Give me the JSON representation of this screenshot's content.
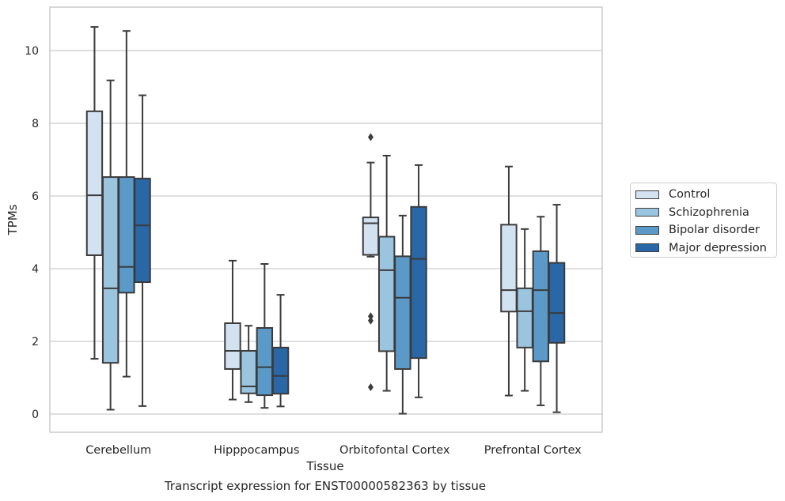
{
  "chart_data": {
    "type": "box",
    "title": "",
    "caption": "Transcript expression for ENST00000582363 by tissue",
    "xlabel": "Tissue",
    "ylabel": "TPMs",
    "ylim": [
      -0.5,
      11.2
    ],
    "yticks": [
      0,
      2,
      4,
      6,
      8,
      10
    ],
    "grid": "horizontal",
    "legend_position": "right",
    "categories": [
      "Cerebellum",
      "Hipppocampus",
      "Orbitofontal Cortex",
      "Prefrontal Cortex"
    ],
    "series": [
      {
        "name": "Control",
        "color": "#d3e2f1",
        "boxes": [
          {
            "whislo": 1.52,
            "q1": 4.37,
            "med": 6.02,
            "q3": 8.33,
            "whishi": 10.65,
            "fliers": []
          },
          {
            "whislo": 0.4,
            "q1": 1.24,
            "med": 1.74,
            "q3": 2.5,
            "whishi": 4.22,
            "fliers": []
          },
          {
            "whislo": 4.33,
            "q1": 4.38,
            "med": 5.25,
            "q3": 5.41,
            "whishi": 6.92,
            "fliers": [
              7.62,
              2.69,
              2.57,
              0.74
            ]
          },
          {
            "whislo": 0.51,
            "q1": 2.82,
            "med": 3.41,
            "q3": 5.21,
            "whishi": 6.81,
            "fliers": []
          }
        ]
      },
      {
        "name": "Schizophrenia",
        "color": "#9bc5de",
        "boxes": [
          {
            "whislo": 0.12,
            "q1": 1.41,
            "med": 3.46,
            "q3": 6.52,
            "whishi": 9.18,
            "fliers": []
          },
          {
            "whislo": 0.33,
            "q1": 0.57,
            "med": 0.76,
            "q3": 1.74,
            "whishi": 2.43,
            "fliers": []
          },
          {
            "whislo": 0.64,
            "q1": 1.73,
            "med": 3.96,
            "q3": 4.88,
            "whishi": 7.11,
            "fliers": []
          },
          {
            "whislo": 0.64,
            "q1": 1.83,
            "med": 2.83,
            "q3": 3.46,
            "whishi": 5.09,
            "fliers": []
          }
        ]
      },
      {
        "name": "Bipolar disorder",
        "color": "#5b9ac8",
        "boxes": [
          {
            "whislo": 1.03,
            "q1": 3.34,
            "med": 4.05,
            "q3": 6.52,
            "whishi": 10.54,
            "fliers": []
          },
          {
            "whislo": 0.17,
            "q1": 0.52,
            "med": 1.29,
            "q3": 2.37,
            "whishi": 4.13,
            "fliers": []
          },
          {
            "whislo": 0.01,
            "q1": 1.24,
            "med": 3.2,
            "q3": 4.34,
            "whishi": 5.46,
            "fliers": []
          },
          {
            "whislo": 0.24,
            "q1": 1.45,
            "med": 3.41,
            "q3": 4.48,
            "whishi": 5.43,
            "fliers": []
          }
        ]
      },
      {
        "name": "Major depression",
        "color": "#2a67a6",
        "boxes": [
          {
            "whislo": 0.22,
            "q1": 3.63,
            "med": 5.19,
            "q3": 6.48,
            "whishi": 8.77,
            "fliers": []
          },
          {
            "whislo": 0.21,
            "q1": 0.56,
            "med": 1.05,
            "q3": 1.83,
            "whishi": 3.28,
            "fliers": []
          },
          {
            "whislo": 0.46,
            "q1": 1.54,
            "med": 4.27,
            "q3": 5.7,
            "whishi": 6.85,
            "fliers": []
          },
          {
            "whislo": 0.05,
            "q1": 1.96,
            "med": 2.78,
            "q3": 4.16,
            "whishi": 5.76,
            "fliers": []
          }
        ]
      }
    ]
  }
}
